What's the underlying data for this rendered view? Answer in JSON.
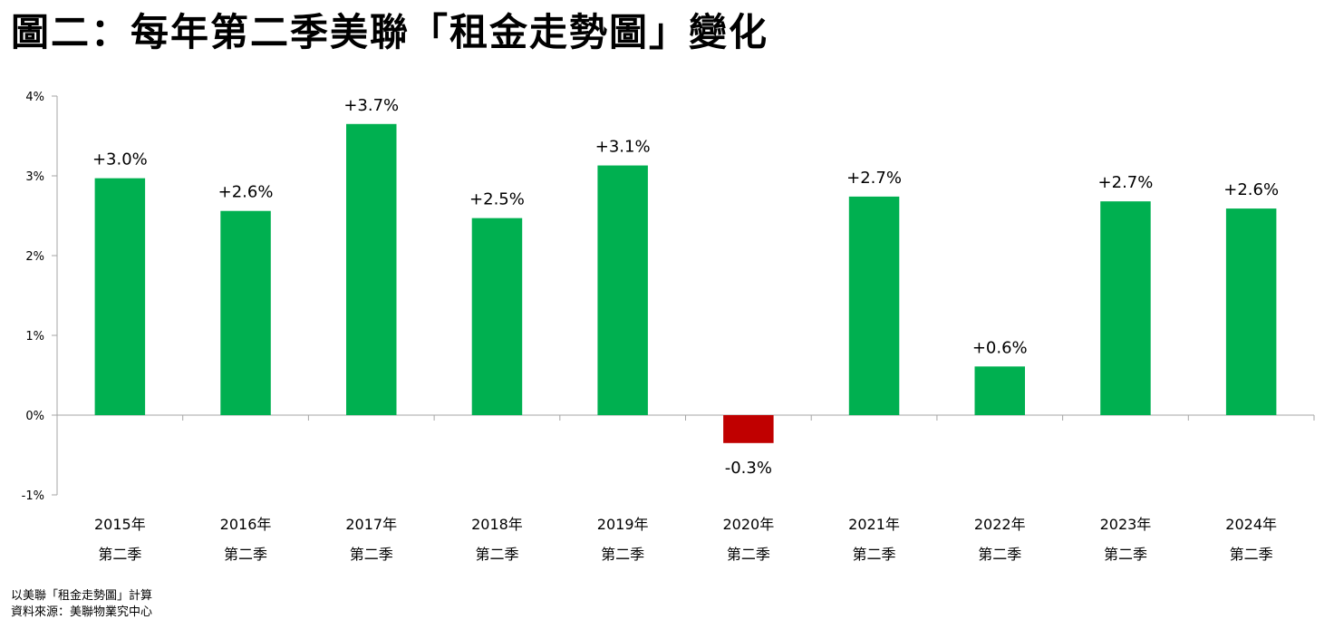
{
  "title": "圖二：每年第二季美聯「租金走勢圖」變化",
  "notes": [
    "以美聯「租金走勢圖」計算",
    "資料來源：美聯物業究中心"
  ],
  "colors": {
    "positive": "#00b050",
    "negative": "#c00000",
    "axis": "#a6a6a6"
  },
  "chart_data": {
    "type": "bar",
    "categories": [
      [
        "2015年",
        "第二季"
      ],
      [
        "2016年",
        "第二季"
      ],
      [
        "2017年",
        "第二季"
      ],
      [
        "2018年",
        "第二季"
      ],
      [
        "2019年",
        "第二季"
      ],
      [
        "2020年",
        "第二季"
      ],
      [
        "2021年",
        "第二季"
      ],
      [
        "2022年",
        "第二季"
      ],
      [
        "2023年",
        "第二季"
      ],
      [
        "2024年",
        "第二季"
      ]
    ],
    "values": [
      2.97,
      2.56,
      3.65,
      2.47,
      3.13,
      -0.35,
      2.74,
      0.61,
      2.68,
      2.59
    ],
    "data_labels": [
      "+3.0%",
      "+2.6%",
      "+3.7%",
      "+2.5%",
      "+3.1%",
      "-0.3%",
      "+2.7%",
      "+0.6%",
      "+2.7%",
      "+2.6%"
    ],
    "y_ticks": [
      4,
      3,
      2,
      1,
      0,
      -1
    ],
    "y_tick_labels": [
      "4%",
      "3%",
      "2%",
      "1%",
      "0%",
      "-1%"
    ],
    "ylim": [
      -1,
      4
    ],
    "grid": false,
    "legend": "none"
  }
}
